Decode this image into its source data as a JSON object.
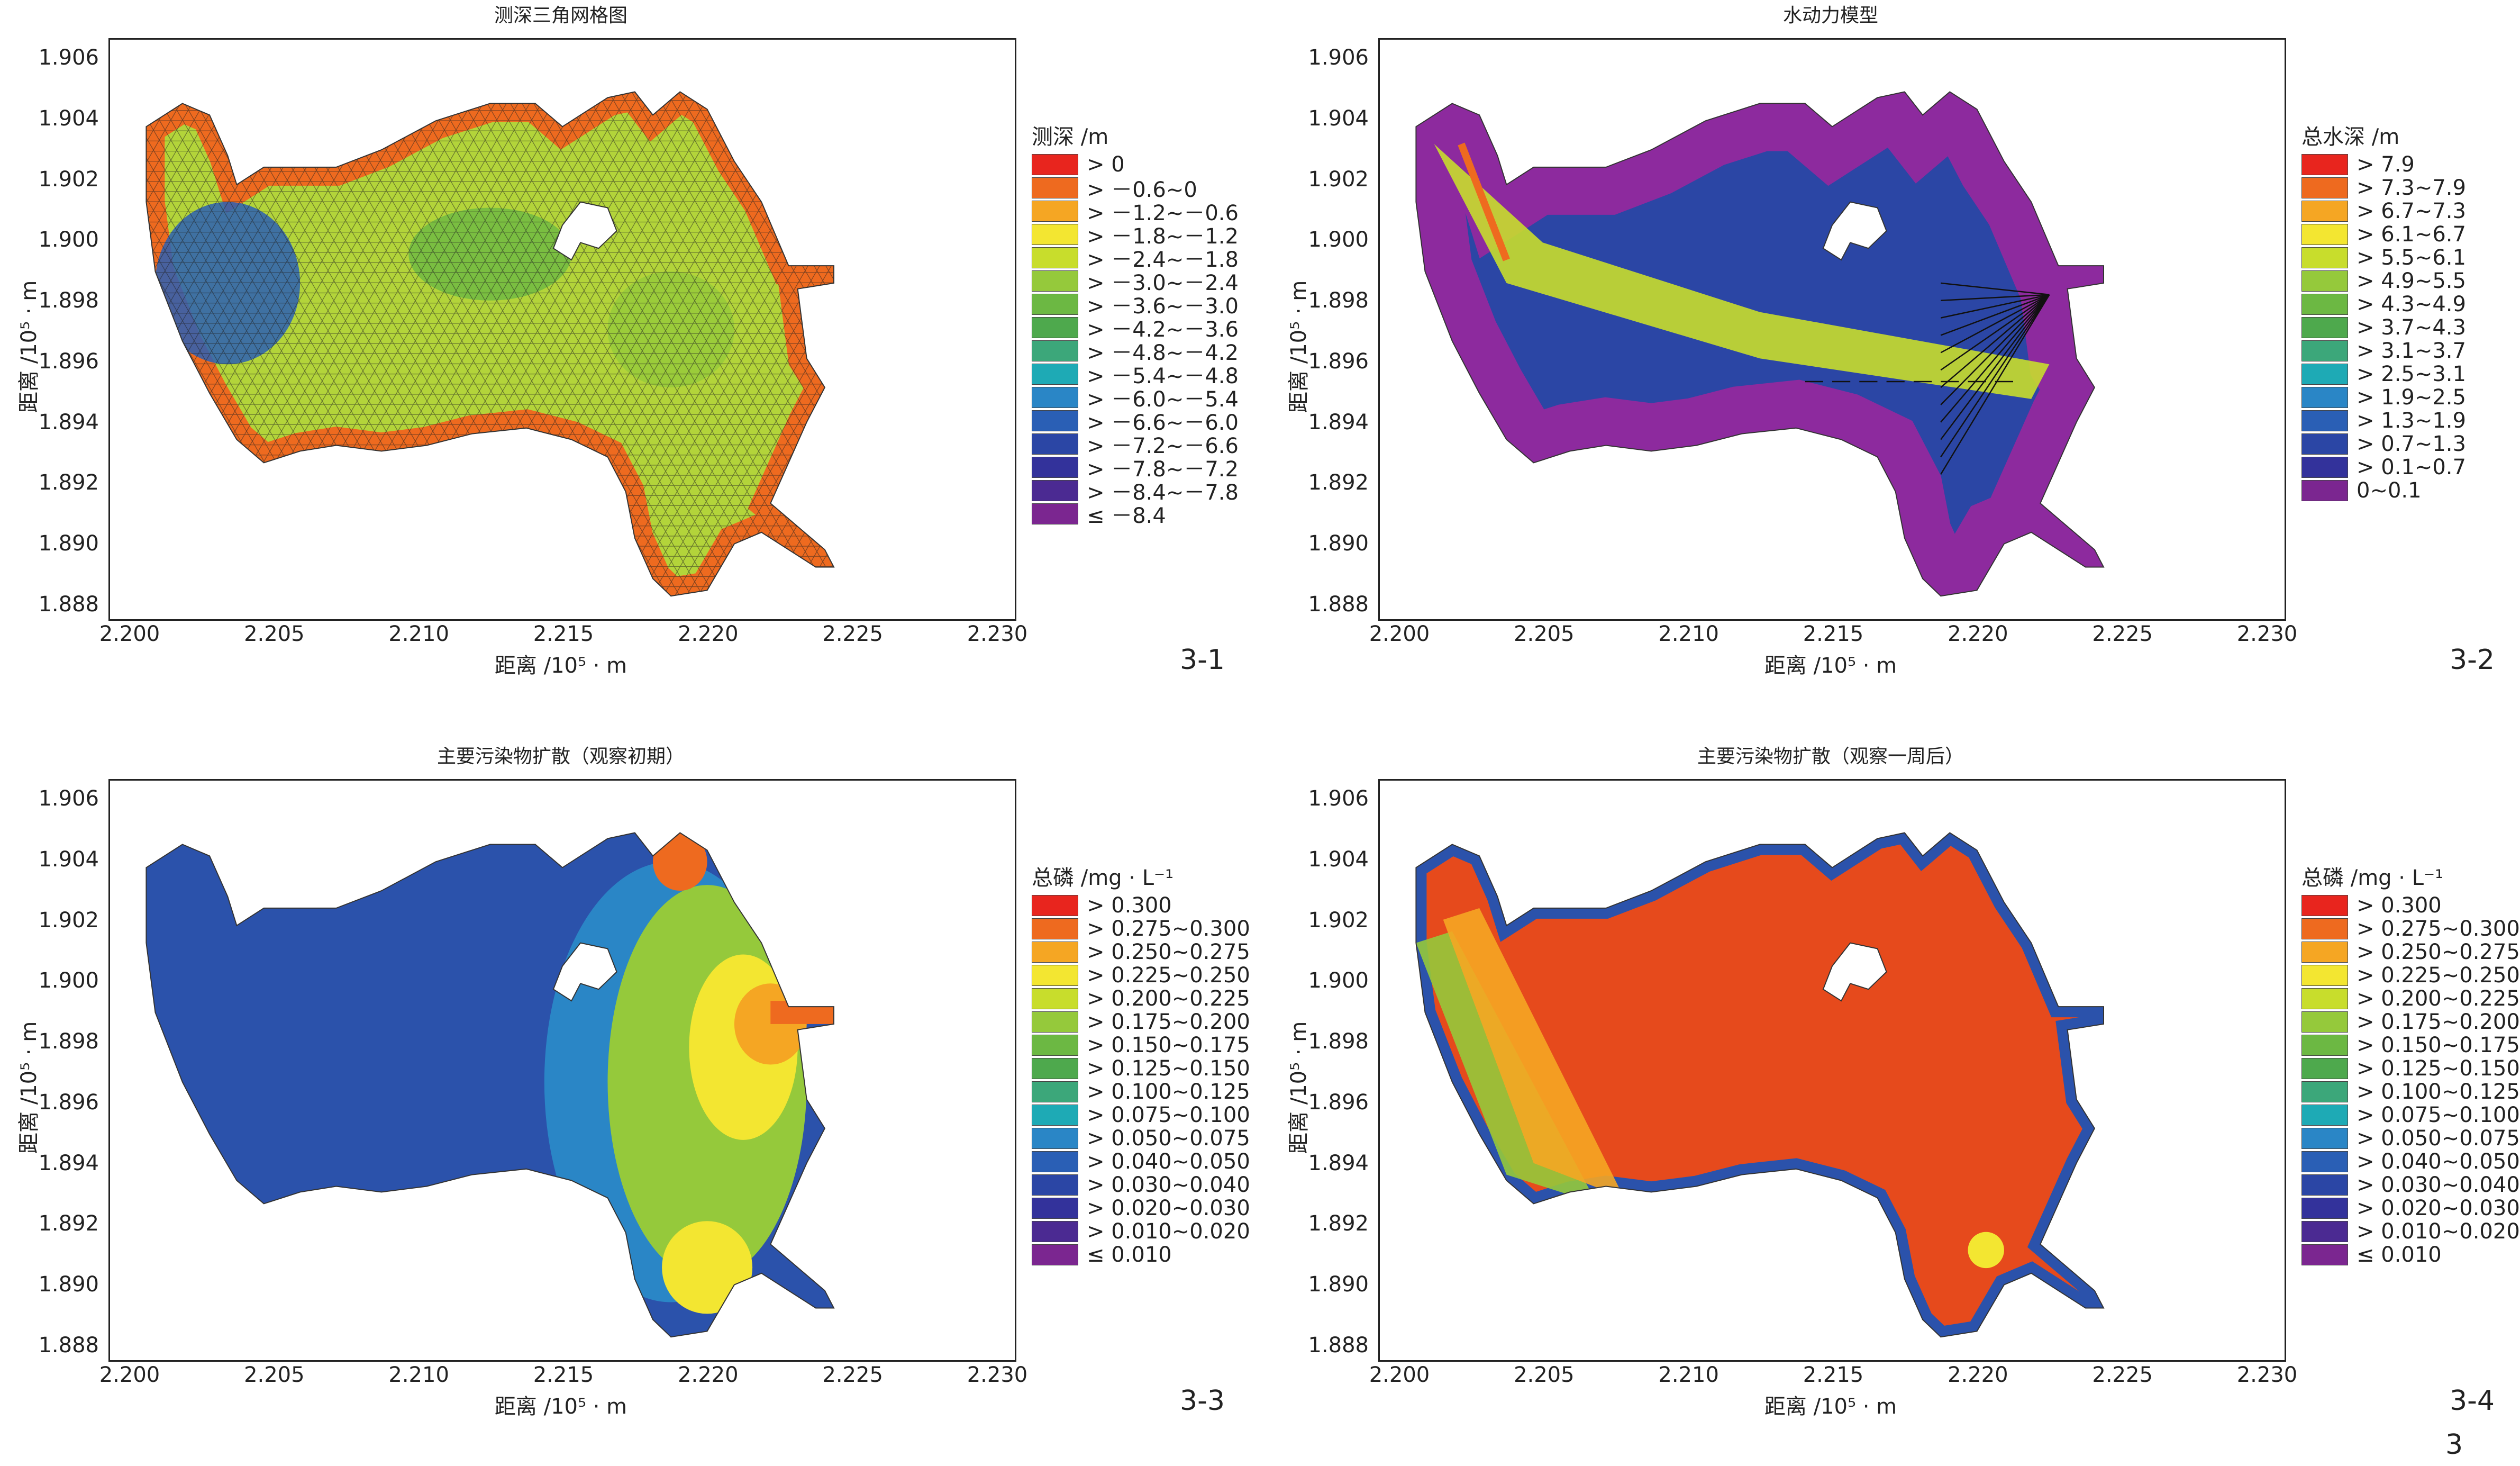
{
  "page_number": "3",
  "axis_common": {
    "xlabel": "距离 /10⁵ · m",
    "ylabel": "距离 /10⁵ · m",
    "x_ticks": [
      "2.200",
      "2.205",
      "2.210",
      "2.215",
      "2.220",
      "2.225",
      "2.230"
    ],
    "y_ticks": [
      "1.906",
      "1.904",
      "1.902",
      "1.900",
      "1.898",
      "1.896",
      "1.894",
      "1.892",
      "1.890",
      "1.888"
    ]
  },
  "chart_data": [
    {
      "type": "heatmap",
      "title": "测深三角网格图",
      "tag": "3-1",
      "xlabel": "距离 /10⁵ · m",
      "ylabel": "距离 /10⁵ · m",
      "xlim": [
        2.2,
        2.23
      ],
      "ylim": [
        1.888,
        1.9065
      ],
      "legend_title": "测深 /m",
      "legend": [
        {
          "label": "> 0",
          "color": "#e8251e"
        },
        {
          "label": "> －0.6~0",
          "color": "#ee6a1f"
        },
        {
          "label": "> －1.2~－0.6",
          "color": "#f5a623"
        },
        {
          "label": "> －1.8~－1.2",
          "color": "#f3e631"
        },
        {
          "label": "> －2.4~－1.8",
          "color": "#c8dd2c"
        },
        {
          "label": "> －3.0~－2.4",
          "color": "#95c93b"
        },
        {
          "label": "> －3.6~－3.0",
          "color": "#6cb843"
        },
        {
          "label": "> －4.2~－3.6",
          "color": "#4ea94d"
        },
        {
          "label": "> －4.8~－4.2",
          "color": "#3ca77a"
        },
        {
          "label": "> －5.4~－4.8",
          "color": "#1eaab5"
        },
        {
          "label": "> －6.0~－5.4",
          "color": "#2a86c6"
        },
        {
          "label": "> －6.6~－6.0",
          "color": "#2a5fb5"
        },
        {
          "label": "> －7.2~－6.6",
          "color": "#2b46a5"
        },
        {
          "label": "> －7.8~－7.2",
          "color": "#33329b"
        },
        {
          "label": "> －8.4~－7.8",
          "color": "#4b2a92"
        },
        {
          "label": "≤ －8.4",
          "color": "#7b2690"
        }
      ],
      "fill_main": "#b3d43a",
      "fill_edge": "#ee6a1f",
      "fill_deep": "#2a5fb5",
      "mesh": true
    },
    {
      "type": "heatmap",
      "title": "水动力模型",
      "tag": "3-2",
      "xlabel": "距离 /10⁵ · m",
      "ylabel": "距离 /10⁵ · m",
      "xlim": [
        2.2,
        2.23
      ],
      "ylim": [
        1.888,
        1.9065
      ],
      "legend_title": "总水深 /m",
      "legend": [
        {
          "label": "> 7.9",
          "color": "#e8251e"
        },
        {
          "label": "> 7.3~7.9",
          "color": "#ee6a1f"
        },
        {
          "label": "> 6.7~7.3",
          "color": "#f5a623"
        },
        {
          "label": "> 6.1~6.7",
          "color": "#f3e631"
        },
        {
          "label": "> 5.5~6.1",
          "color": "#c8dd2c"
        },
        {
          "label": "> 4.9~5.5",
          "color": "#95c93b"
        },
        {
          "label": "> 4.3~4.9",
          "color": "#6cb843"
        },
        {
          "label": "> 3.7~4.3",
          "color": "#4ea94d"
        },
        {
          "label": "> 3.1~3.7",
          "color": "#3ca77a"
        },
        {
          "label": "> 2.5~3.1",
          "color": "#1eaab5"
        },
        {
          "label": "> 1.9~2.5",
          "color": "#2a86c6"
        },
        {
          "label": "> 1.3~1.9",
          "color": "#2a5fb5"
        },
        {
          "label": "> 0.7~1.3",
          "color": "#2b46a5"
        },
        {
          "label": "> 0.1~0.7",
          "color": "#33329b"
        },
        {
          "label": "0~0.1",
          "color": "#7b2690"
        }
      ],
      "fill_main": "#2b46a5",
      "fill_edge": "#8d2a9e",
      "fill_channel": "#c8dd2c",
      "arrows": true
    },
    {
      "type": "heatmap",
      "title": "主要污染物扩散（观察初期）",
      "tag": "3-3",
      "xlabel": "距离 /10⁵ · m",
      "ylabel": "距离 /10⁵ · m",
      "xlim": [
        2.2,
        2.23
      ],
      "ylim": [
        1.888,
        1.9065
      ],
      "legend_title": "总磷 /mg · L⁻¹",
      "legend": [
        {
          "label": "> 0.300",
          "color": "#e8251e"
        },
        {
          "label": "> 0.275~0.300",
          "color": "#ee6a1f"
        },
        {
          "label": "> 0.250~0.275",
          "color": "#f5a623"
        },
        {
          "label": "> 0.225~0.250",
          "color": "#f3e631"
        },
        {
          "label": "> 0.200~0.225",
          "color": "#c8dd2c"
        },
        {
          "label": "> 0.175~0.200",
          "color": "#95c93b"
        },
        {
          "label": "> 0.150~0.175",
          "color": "#6cb843"
        },
        {
          "label": "> 0.125~0.150",
          "color": "#4ea94d"
        },
        {
          "label": "> 0.100~0.125",
          "color": "#3ca77a"
        },
        {
          "label": "> 0.075~0.100",
          "color": "#1eaab5"
        },
        {
          "label": "> 0.050~0.075",
          "color": "#2a86c6"
        },
        {
          "label": "> 0.040~0.050",
          "color": "#2a5fb5"
        },
        {
          "label": "> 0.030~0.040",
          "color": "#2b46a5"
        },
        {
          "label": "> 0.020~0.030",
          "color": "#33329b"
        },
        {
          "label": "> 0.010~0.020",
          "color": "#4b2a92"
        },
        {
          "label": "≤ 0.010",
          "color": "#7b2690"
        }
      ],
      "fill_main": "#2b52ab",
      "fill_plume": "#95c93b"
    },
    {
      "type": "heatmap",
      "title": "主要污染物扩散（观察一周后）",
      "tag": "3-4",
      "xlabel": "距离 /10⁵ · m",
      "ylabel": "距离 /10⁵ · m",
      "xlim": [
        2.2,
        2.23
      ],
      "ylim": [
        1.888,
        1.9065
      ],
      "legend_title": "总磷 /mg · L⁻¹",
      "legend": [
        {
          "label": "> 0.300",
          "color": "#e8251e"
        },
        {
          "label": "> 0.275~0.300",
          "color": "#ee6a1f"
        },
        {
          "label": "> 0.250~0.275",
          "color": "#f5a623"
        },
        {
          "label": "> 0.225~0.250",
          "color": "#f3e631"
        },
        {
          "label": "> 0.200~0.225",
          "color": "#c8dd2c"
        },
        {
          "label": "> 0.175~0.200",
          "color": "#95c93b"
        },
        {
          "label": "> 0.150~0.175",
          "color": "#6cb843"
        },
        {
          "label": "> 0.125~0.150",
          "color": "#4ea94d"
        },
        {
          "label": "> 0.100~0.125",
          "color": "#3ca77a"
        },
        {
          "label": "> 0.075~0.100",
          "color": "#1eaab5"
        },
        {
          "label": "> 0.050~0.075",
          "color": "#2a86c6"
        },
        {
          "label": "> 0.040~0.050",
          "color": "#2a5fb5"
        },
        {
          "label": "> 0.030~0.040",
          "color": "#2b46a5"
        },
        {
          "label": "> 0.020~0.030",
          "color": "#33329b"
        },
        {
          "label": "> 0.010~0.020",
          "color": "#4b2a92"
        },
        {
          "label": "≤ 0.010",
          "color": "#7b2690"
        }
      ],
      "fill_main": "#e64a1c",
      "fill_edge": "#f5a623"
    }
  ]
}
